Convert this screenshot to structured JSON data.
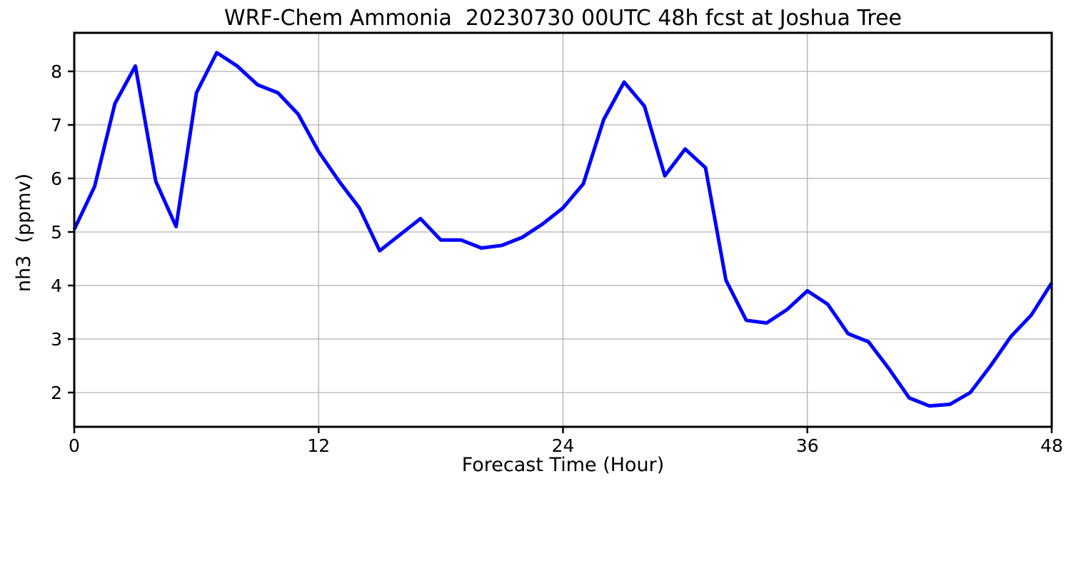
{
  "chart_data": {
    "type": "line",
    "title": "WRF-Chem Ammonia  20230730 00UTC 48h fcst at Joshua Tree",
    "xlabel": "Forecast Time (Hour)",
    "ylabel": "nh3  (ppmv)",
    "x": [
      0,
      1,
      2,
      3,
      4,
      5,
      6,
      7,
      8,
      9,
      10,
      11,
      12,
      13,
      14,
      15,
      16,
      17,
      18,
      19,
      20,
      21,
      22,
      23,
      24,
      25,
      26,
      27,
      28,
      29,
      30,
      31,
      32,
      33,
      34,
      35,
      36,
      37,
      38,
      39,
      40,
      41,
      42,
      43,
      44,
      45,
      46,
      47,
      48
    ],
    "series": [
      {
        "name": "nh3 (ppmv)",
        "values": [
          5.05,
          5.85,
          7.4,
          8.1,
          5.95,
          5.1,
          7.6,
          8.35,
          8.1,
          7.75,
          7.6,
          7.2,
          6.5,
          5.95,
          5.45,
          4.65,
          4.95,
          5.25,
          4.85,
          4.85,
          4.7,
          4.75,
          4.9,
          5.15,
          5.45,
          5.9,
          7.1,
          7.8,
          7.35,
          6.05,
          6.55,
          6.2,
          4.1,
          3.35,
          3.3,
          3.55,
          3.9,
          3.65,
          3.1,
          2.95,
          2.45,
          1.9,
          1.75,
          1.78,
          2.0,
          2.5,
          3.05,
          3.45,
          4.05
        ]
      }
    ],
    "xticks": [
      0,
      12,
      24,
      36,
      48
    ],
    "yticks": [
      2,
      3,
      4,
      5,
      6,
      7,
      8
    ],
    "xlim": [
      0,
      48
    ],
    "ylim": [
      1.36,
      8.72
    ],
    "grid": true,
    "legend": "none",
    "line_color": "#0000ff",
    "grid_color": "#b0b0b0",
    "spine_color": "#000000",
    "text_color": "#000000",
    "background": "#ffffff"
  }
}
